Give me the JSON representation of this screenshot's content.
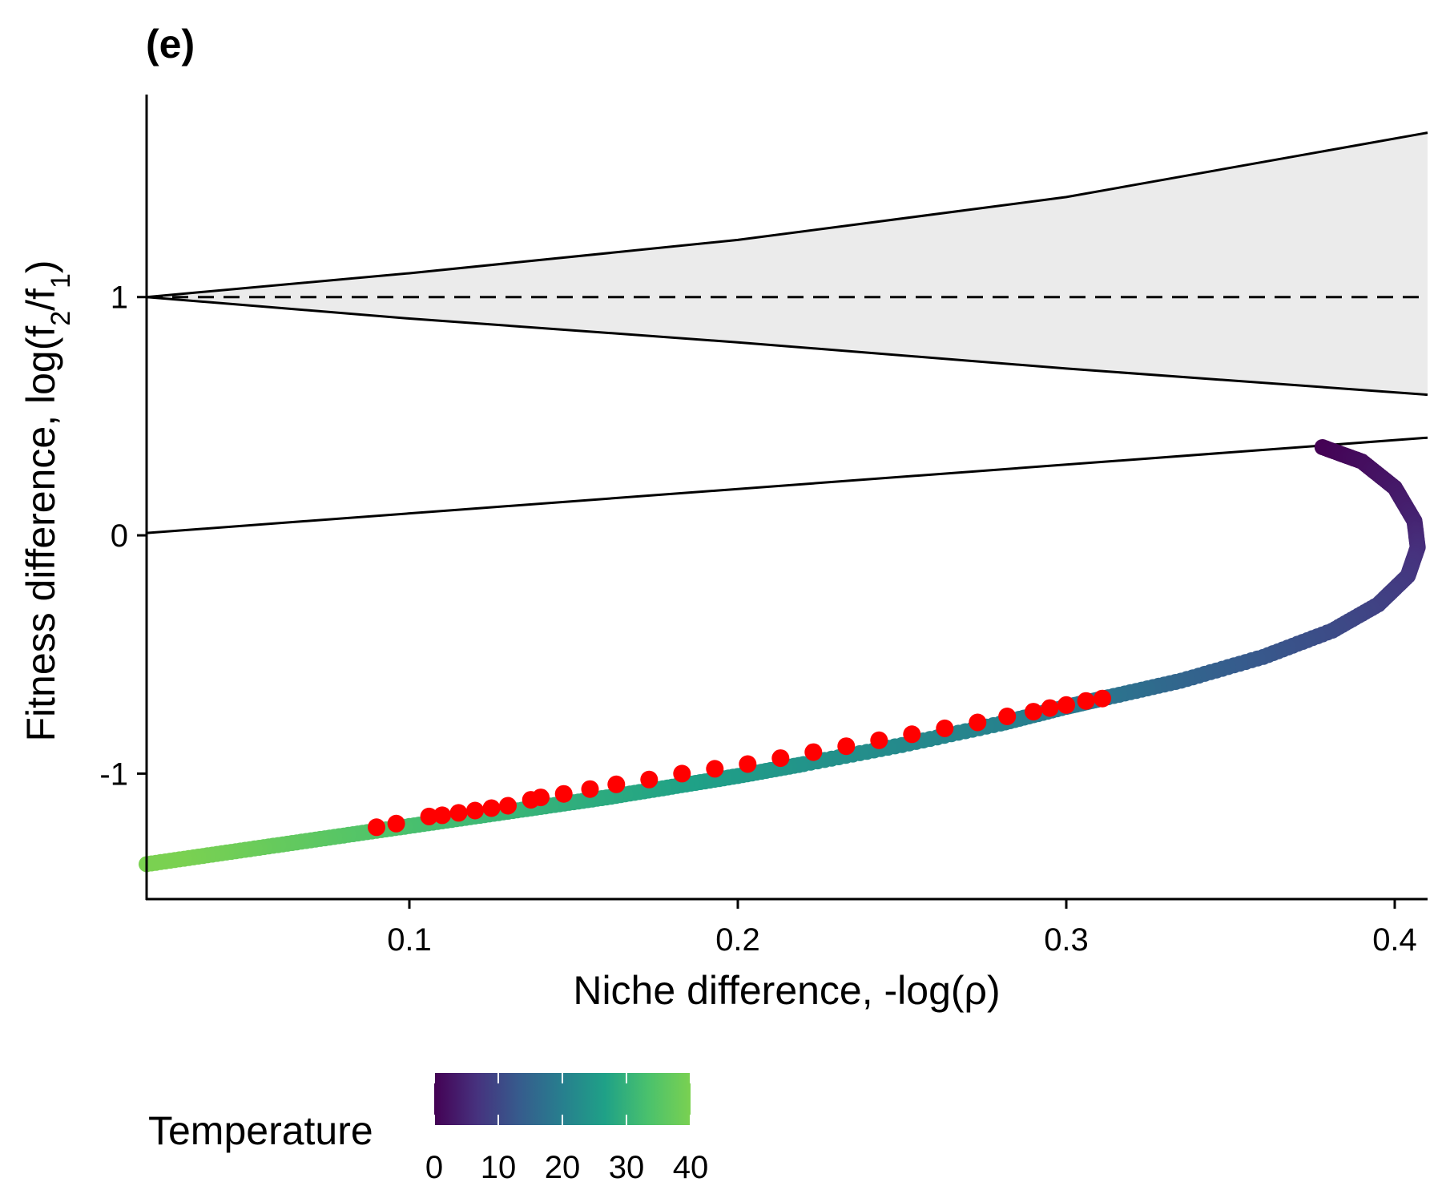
{
  "chart_data": {
    "type": "scatter",
    "panel_label": "(e)",
    "xlabel": "Niche difference, -log(ρ)",
    "ylabel_parts": [
      "Fitness difference, log(f",
      "2",
      "/f",
      "1",
      ")"
    ],
    "xlim": [
      0.02,
      0.41
    ],
    "ylim": [
      -1.52,
      1.85
    ],
    "xticks": [
      0.1,
      0.2,
      0.3,
      0.4
    ],
    "xtick_labels": [
      "0.1",
      "0.2",
      "0.3",
      "0.4"
    ],
    "yticks": [
      -1,
      0,
      1
    ],
    "ytick_labels": [
      "-1",
      "0",
      "1"
    ],
    "grid": false,
    "reference_lines": {
      "dashed_y": 1,
      "upper_boundary": [
        [
          0.02,
          1.0
        ],
        [
          0.1,
          1.1
        ],
        [
          0.2,
          1.24
        ],
        [
          0.3,
          1.42
        ],
        [
          0.41,
          1.69
        ]
      ],
      "lower_boundary": [
        [
          0.02,
          1.0
        ],
        [
          0.1,
          0.91
        ],
        [
          0.2,
          0.81
        ],
        [
          0.3,
          0.7
        ],
        [
          0.41,
          0.59
        ]
      ],
      "straight_line": [
        [
          0.02,
          0.01
        ],
        [
          0.41,
          0.41
        ]
      ]
    },
    "shaded_region": "between upper_boundary and lower_boundary",
    "shade_color": "#ebebeb",
    "series": [
      {
        "color_by": "temperature",
        "points": [
          {
            "x": 0.378,
            "y": 0.37,
            "t": 0
          },
          {
            "x": 0.39,
            "y": 0.31,
            "t": 1.5
          },
          {
            "x": 0.4,
            "y": 0.2,
            "t": 3
          },
          {
            "x": 0.406,
            "y": 0.06,
            "t": 4.5
          },
          {
            "x": 0.407,
            "y": -0.05,
            "t": 6
          },
          {
            "x": 0.404,
            "y": -0.17,
            "t": 7.5
          },
          {
            "x": 0.395,
            "y": -0.29,
            "t": 9
          },
          {
            "x": 0.381,
            "y": -0.4,
            "t": 10.5
          },
          {
            "x": 0.36,
            "y": -0.51,
            "t": 12.5
          },
          {
            "x": 0.335,
            "y": -0.61,
            "t": 15
          },
          {
            "x": 0.311,
            "y": -0.685,
            "t": 18
          },
          {
            "x": 0.3,
            "y": -0.72,
            "t": 19
          },
          {
            "x": 0.28,
            "y": -0.79,
            "t": 20.5
          },
          {
            "x": 0.25,
            "y": -0.88,
            "t": 22
          },
          {
            "x": 0.22,
            "y": -0.96,
            "t": 24
          },
          {
            "x": 0.2,
            "y": -1.01,
            "t": 25.5
          },
          {
            "x": 0.18,
            "y": -1.055,
            "t": 27
          },
          {
            "x": 0.16,
            "y": -1.1,
            "t": 28.5
          },
          {
            "x": 0.14,
            "y": -1.14,
            "t": 30
          },
          {
            "x": 0.12,
            "y": -1.18,
            "t": 31.5
          },
          {
            "x": 0.1,
            "y": -1.22,
            "t": 33
          },
          {
            "x": 0.08,
            "y": -1.26,
            "t": 35
          },
          {
            "x": 0.06,
            "y": -1.3,
            "t": 37
          },
          {
            "x": 0.04,
            "y": -1.34,
            "t": 39
          },
          {
            "x": 0.02,
            "y": -1.38,
            "t": 41
          }
        ]
      }
    ],
    "highlight_points": {
      "color": "#ff0000",
      "points": [
        {
          "x": 0.311,
          "y": -0.685
        },
        {
          "x": 0.306,
          "y": -0.695
        },
        {
          "x": 0.3,
          "y": -0.712
        },
        {
          "x": 0.295,
          "y": -0.725
        },
        {
          "x": 0.29,
          "y": -0.74
        },
        {
          "x": 0.282,
          "y": -0.76
        },
        {
          "x": 0.273,
          "y": -0.785
        },
        {
          "x": 0.263,
          "y": -0.81
        },
        {
          "x": 0.253,
          "y": -0.835
        },
        {
          "x": 0.243,
          "y": -0.86
        },
        {
          "x": 0.233,
          "y": -0.885
        },
        {
          "x": 0.223,
          "y": -0.91
        },
        {
          "x": 0.213,
          "y": -0.935
        },
        {
          "x": 0.203,
          "y": -0.96
        },
        {
          "x": 0.193,
          "y": -0.98
        },
        {
          "x": 0.183,
          "y": -1.0
        },
        {
          "x": 0.173,
          "y": -1.025
        },
        {
          "x": 0.163,
          "y": -1.045
        },
        {
          "x": 0.155,
          "y": -1.065
        },
        {
          "x": 0.147,
          "y": -1.085
        },
        {
          "x": 0.14,
          "y": -1.1
        },
        {
          "x": 0.137,
          "y": -1.11
        },
        {
          "x": 0.13,
          "y": -1.135
        },
        {
          "x": 0.125,
          "y": -1.145
        },
        {
          "x": 0.12,
          "y": -1.155
        },
        {
          "x": 0.115,
          "y": -1.165
        },
        {
          "x": 0.11,
          "y": -1.175
        },
        {
          "x": 0.106,
          "y": -1.18
        },
        {
          "x": 0.096,
          "y": -1.21
        },
        {
          "x": 0.09,
          "y": -1.225
        }
      ]
    },
    "legend": {
      "title": "Temperature",
      "position": "bottom-left",
      "type": "colorbar",
      "range": [
        0,
        40
      ],
      "ticks": [
        0,
        10,
        20,
        30,
        40
      ],
      "tick_labels": [
        "0",
        "10",
        "20",
        "30",
        "40"
      ],
      "colors": [
        "#440154",
        "#46327e",
        "#365c8d",
        "#277f8e",
        "#1fa187",
        "#4ac16d",
        "#7ad151"
      ]
    },
    "line_color": "#000000"
  }
}
